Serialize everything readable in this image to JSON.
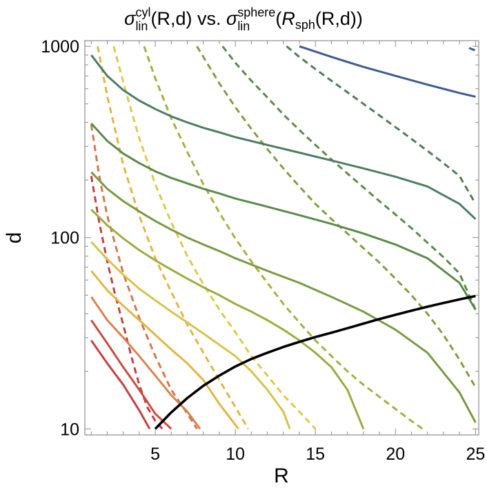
{
  "chart_data": {
    "type": "line",
    "title": {
      "left_symbol": "σ",
      "left_sup": "cyl",
      "left_sub": "lin",
      "left_args": "(R,d) vs. ",
      "right_symbol": "σ",
      "right_sup": "sphere",
      "right_sub": "lin",
      "right_open": "(",
      "right_func": "R",
      "right_func_sub": "sph",
      "right_args": "(R,d))"
    },
    "xlabel": "R",
    "ylabel": "d",
    "xlim": [
      0.6,
      25.2
    ],
    "ylim": [
      9.3,
      1070
    ],
    "yscale": "log",
    "x_ticks": [
      5,
      10,
      15,
      20,
      25
    ],
    "y_ticks": [
      10,
      100,
      1000
    ],
    "x_tick_labels": [
      "5",
      "10",
      "15",
      "20",
      "25"
    ],
    "y_tick_labels": [
      "10",
      "100",
      "1000"
    ],
    "grid": false,
    "legend": "none",
    "series": [
      {
        "style": "solid",
        "color": "#c44040",
        "points": [
          [
            1,
            29
          ],
          [
            2,
            22
          ],
          [
            3,
            17
          ],
          [
            4,
            12.5
          ],
          [
            4.65,
            10
          ]
        ]
      },
      {
        "style": "dashed",
        "color": "#c44040",
        "points": [
          [
            1,
            210
          ],
          [
            1.5,
            120
          ],
          [
            2,
            75
          ],
          [
            2.5,
            50
          ],
          [
            3,
            35
          ],
          [
            3.5,
            24
          ],
          [
            4,
            17
          ],
          [
            4.5,
            13
          ],
          [
            5,
            11
          ],
          [
            5.45,
            10
          ]
        ]
      },
      {
        "style": "solid",
        "color": "#cc4a40",
        "points": [
          [
            1,
            37
          ],
          [
            2,
            28
          ],
          [
            3,
            21
          ],
          [
            4,
            16
          ],
          [
            5,
            12
          ],
          [
            6,
            10
          ]
        ]
      },
      {
        "style": "dashed",
        "color": "#d57848",
        "points": [
          [
            1,
            390
          ],
          [
            1.5,
            210
          ],
          [
            2,
            130
          ],
          [
            3,
            65
          ],
          [
            4,
            38
          ],
          [
            5,
            24
          ],
          [
            6,
            16
          ],
          [
            7,
            12
          ],
          [
            7.6,
            10
          ]
        ]
      },
      {
        "style": "solid",
        "color": "#d8834c",
        "points": [
          [
            1,
            49
          ],
          [
            2,
            37
          ],
          [
            3,
            30
          ],
          [
            4,
            24
          ],
          [
            5,
            19
          ],
          [
            6,
            15
          ],
          [
            7,
            12.3
          ],
          [
            7.8,
            10
          ]
        ]
      },
      {
        "style": "dashed",
        "color": "#e3b542",
        "points": [
          [
            1.4,
            1000
          ],
          [
            2,
            550
          ],
          [
            3,
            240
          ],
          [
            4,
            130
          ],
          [
            5,
            78
          ],
          [
            6,
            52
          ],
          [
            7,
            35
          ],
          [
            8,
            25
          ],
          [
            9,
            18
          ],
          [
            10,
            13
          ],
          [
            10.8,
            10
          ]
        ]
      },
      {
        "style": "solid",
        "color": "#e3b542",
        "points": [
          [
            1,
            67
          ],
          [
            2,
            53
          ],
          [
            3,
            44
          ],
          [
            4,
            37
          ],
          [
            5,
            31
          ],
          [
            6,
            26
          ],
          [
            7,
            22
          ],
          [
            8,
            18
          ],
          [
            9,
            13.5
          ],
          [
            10.2,
            10
          ]
        ]
      },
      {
        "style": "dashed",
        "color": "#e0c948",
        "points": [
          [
            2.4,
            1000
          ],
          [
            3,
            650
          ],
          [
            4,
            330
          ],
          [
            5,
            190
          ],
          [
            6,
            120
          ],
          [
            7,
            80
          ],
          [
            8,
            57
          ],
          [
            9,
            42
          ],
          [
            10,
            32
          ],
          [
            11,
            24
          ],
          [
            12,
            19
          ],
          [
            13,
            15
          ],
          [
            14,
            12.3
          ],
          [
            15,
            10
          ]
        ]
      },
      {
        "style": "solid",
        "color": "#d8c24a",
        "points": [
          [
            1,
            95
          ],
          [
            2,
            77
          ],
          [
            3,
            64
          ],
          [
            4,
            54
          ],
          [
            5,
            47
          ],
          [
            6,
            41
          ],
          [
            7,
            36
          ],
          [
            8,
            31.5
          ],
          [
            9,
            27.5
          ],
          [
            10,
            24
          ],
          [
            11,
            20
          ],
          [
            12,
            16
          ],
          [
            13,
            12.3
          ],
          [
            13.4,
            10
          ]
        ]
      },
      {
        "style": "dashed",
        "color": "#a5b040",
        "points": [
          [
            4.3,
            1000
          ],
          [
            5,
            680
          ],
          [
            6,
            420
          ],
          [
            7,
            280
          ],
          [
            8,
            190
          ],
          [
            9,
            135
          ],
          [
            10,
            99
          ],
          [
            11,
            75
          ],
          [
            12,
            58
          ],
          [
            13,
            45
          ],
          [
            14,
            36
          ],
          [
            15,
            29
          ],
          [
            16,
            24
          ],
          [
            17,
            20
          ],
          [
            18,
            17
          ],
          [
            19,
            14.7
          ],
          [
            20,
            12.7
          ],
          [
            21,
            11
          ],
          [
            21.7,
            10
          ]
        ]
      },
      {
        "style": "solid",
        "color": "#99ad3e",
        "points": [
          [
            1,
            140
          ],
          [
            2,
            116
          ],
          [
            3,
            99
          ],
          [
            4,
            86
          ],
          [
            5,
            76
          ],
          [
            6,
            68
          ],
          [
            7,
            61
          ],
          [
            8,
            55
          ],
          [
            9,
            50
          ],
          [
            10,
            45
          ],
          [
            11,
            41
          ],
          [
            12,
            37
          ],
          [
            13,
            33
          ],
          [
            14,
            29
          ],
          [
            15,
            25
          ],
          [
            16,
            21
          ],
          [
            17,
            16
          ],
          [
            18,
            10
          ]
        ]
      },
      {
        "style": "dashed",
        "color": "#7ea03c",
        "points": [
          [
            7.6,
            1000
          ],
          [
            9,
            640
          ],
          [
            10,
            480
          ],
          [
            11,
            370
          ],
          [
            12,
            290
          ],
          [
            13,
            230
          ],
          [
            14,
            185
          ],
          [
            15,
            150
          ],
          [
            16,
            125
          ],
          [
            17,
            105
          ],
          [
            18,
            88
          ],
          [
            19,
            74
          ],
          [
            20,
            61
          ],
          [
            21,
            50
          ],
          [
            22,
            40
          ],
          [
            23,
            31
          ],
          [
            24,
            23
          ],
          [
            25,
            16.5
          ]
        ]
      },
      {
        "style": "solid",
        "color": "#789a40",
        "points": [
          [
            1,
            220
          ],
          [
            2,
            180
          ],
          [
            3,
            155
          ],
          [
            4,
            137
          ],
          [
            5,
            122
          ],
          [
            6,
            110
          ],
          [
            7,
            100
          ],
          [
            8,
            92
          ],
          [
            9,
            85
          ],
          [
            10,
            78
          ],
          [
            12,
            67
          ],
          [
            14,
            58
          ],
          [
            16,
            49
          ],
          [
            18,
            41
          ],
          [
            20,
            33
          ],
          [
            22,
            25
          ],
          [
            24,
            15.5
          ],
          [
            25,
            10.8
          ]
        ]
      },
      {
        "style": "dashed",
        "color": "#5c8a44",
        "points": [
          [
            9.2,
            1000
          ],
          [
            10,
            820
          ],
          [
            11,
            660
          ],
          [
            12,
            540
          ],
          [
            13,
            440
          ],
          [
            14,
            365
          ],
          [
            15,
            305
          ],
          [
            16,
            256
          ],
          [
            17,
            216
          ],
          [
            18,
            183
          ],
          [
            19,
            155
          ],
          [
            20,
            132
          ],
          [
            21,
            112
          ],
          [
            22,
            94
          ],
          [
            23,
            79
          ],
          [
            24,
            65
          ],
          [
            25,
            42
          ]
        ]
      },
      {
        "style": "solid",
        "color": "#5a8a48",
        "points": [
          [
            1,
            395
          ],
          [
            2,
            320
          ],
          [
            3,
            275
          ],
          [
            4,
            245
          ],
          [
            5,
            222
          ],
          [
            6,
            205
          ],
          [
            7,
            192
          ],
          [
            8,
            180
          ],
          [
            9,
            170
          ],
          [
            10,
            160
          ],
          [
            12,
            145
          ],
          [
            14,
            131
          ],
          [
            16,
            118
          ],
          [
            18,
            105
          ],
          [
            20,
            92
          ],
          [
            22,
            78
          ],
          [
            24,
            58
          ],
          [
            25,
            42
          ]
        ]
      },
      {
        "style": "dashed",
        "color": "#4c7e58",
        "points": [
          [
            13.2,
            1000
          ],
          [
            14,
            880
          ],
          [
            15,
            760
          ],
          [
            16,
            660
          ],
          [
            17,
            575
          ],
          [
            18,
            500
          ],
          [
            19,
            435
          ],
          [
            20,
            378
          ],
          [
            21,
            328
          ],
          [
            22,
            284
          ],
          [
            23,
            245
          ],
          [
            24,
            210
          ],
          [
            25,
            150
          ]
        ]
      },
      {
        "style": "solid",
        "color": "#4a7e60",
        "points": [
          [
            1,
            900
          ],
          [
            2,
            700
          ],
          [
            3,
            590
          ],
          [
            4,
            520
          ],
          [
            5,
            470
          ],
          [
            6,
            430
          ],
          [
            7,
            400
          ],
          [
            8,
            375
          ],
          [
            9,
            355
          ],
          [
            10,
            335
          ],
          [
            12,
            305
          ],
          [
            14,
            278
          ],
          [
            16,
            253
          ],
          [
            18,
            230
          ],
          [
            20,
            208
          ],
          [
            22,
            185
          ],
          [
            24,
            150
          ],
          [
            25,
            125
          ]
        ]
      },
      {
        "style": "dashed",
        "color": "#3e5c88",
        "points": [
          [
            24.6,
            980
          ],
          [
            25,
            950
          ]
        ]
      },
      {
        "style": "solid",
        "color": "#3e5a92",
        "points": [
          [
            14,
            1000
          ],
          [
            16,
            880
          ],
          [
            18,
            780
          ],
          [
            20,
            700
          ],
          [
            22,
            630
          ],
          [
            24,
            570
          ],
          [
            25,
            545
          ]
        ]
      },
      {
        "style": "solid",
        "color": "#000000",
        "points": [
          [
            5,
            10
          ],
          [
            6,
            12.2
          ],
          [
            7,
            14.5
          ],
          [
            8,
            16.8
          ],
          [
            9,
            19
          ],
          [
            10,
            21.2
          ],
          [
            11,
            23.2
          ],
          [
            12,
            25
          ],
          [
            13,
            26.8
          ],
          [
            14,
            28.5
          ],
          [
            15,
            30.2
          ],
          [
            16,
            31.8
          ],
          [
            17,
            33.6
          ],
          [
            18,
            35.5
          ],
          [
            19,
            37.5
          ],
          [
            20,
            39.5
          ],
          [
            21,
            41.5
          ],
          [
            22,
            43.5
          ],
          [
            23,
            45.5
          ],
          [
            24,
            47.5
          ],
          [
            25,
            49.5
          ]
        ]
      }
    ]
  }
}
